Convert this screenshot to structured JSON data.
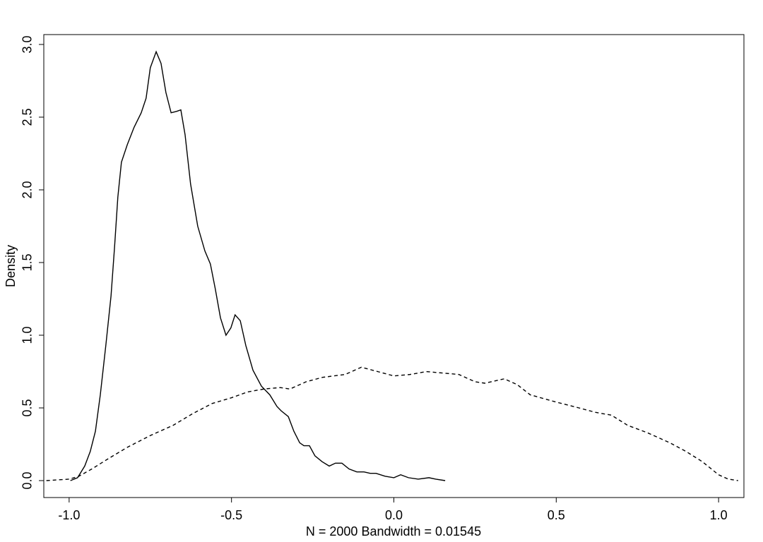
{
  "chart_data": {
    "type": "line",
    "x_label": "N = 2000   Bandwidth = 0.01545",
    "y_label": "Density",
    "xlim": [
      -1.078,
      1.078
    ],
    "ylim": [
      -0.1165,
      3.068
    ],
    "xticks": [
      {
        "value": -1,
        "label": "-1.0"
      },
      {
        "value": -0.5,
        "label": "-0.5"
      },
      {
        "value": 0,
        "label": "0.0"
      },
      {
        "value": 0.5,
        "label": "0.5"
      },
      {
        "value": 1,
        "label": "1.0"
      }
    ],
    "yticks": [
      {
        "value": 0,
        "label": "0.0"
      },
      {
        "value": 0.5,
        "label": "0.5"
      },
      {
        "value": 1,
        "label": "1.0"
      },
      {
        "value": 1.5,
        "label": "1.5"
      },
      {
        "value": 2,
        "label": "2.0"
      },
      {
        "value": 2.5,
        "label": "2.5"
      },
      {
        "value": 3,
        "label": "3.0"
      }
    ],
    "grid": false,
    "series": [
      {
        "color": "#000000",
        "dashed": false,
        "x": [
          -0.996,
          -0.974,
          -0.952,
          -0.935,
          -0.919,
          -0.904,
          -0.887,
          -0.871,
          -0.86,
          -0.85,
          -0.839,
          -0.821,
          -0.8,
          -0.778,
          -0.763,
          -0.75,
          -0.732,
          -0.717,
          -0.702,
          -0.686,
          -0.669,
          -0.656,
          -0.643,
          -0.626,
          -0.604,
          -0.582,
          -0.565,
          -0.55,
          -0.534,
          -0.517,
          -0.502,
          -0.489,
          -0.473,
          -0.456,
          -0.434,
          -0.408,
          -0.382,
          -0.36,
          -0.347,
          -0.325,
          -0.308,
          -0.29,
          -0.277,
          -0.26,
          -0.243,
          -0.221,
          -0.199,
          -0.18,
          -0.16,
          -0.138,
          -0.114,
          -0.092,
          -0.073,
          -0.055,
          -0.027,
          0.0,
          0.021,
          0.045,
          0.075,
          0.108,
          0.129,
          0.158
        ],
        "values": [
          0.0,
          0.02,
          0.1,
          0.2,
          0.34,
          0.59,
          0.93,
          1.27,
          1.61,
          1.95,
          2.19,
          2.31,
          2.43,
          2.53,
          2.63,
          2.84,
          2.95,
          2.87,
          2.67,
          2.53,
          2.54,
          2.55,
          2.38,
          2.04,
          1.75,
          1.58,
          1.49,
          1.32,
          1.12,
          1.0,
          1.05,
          1.14,
          1.1,
          0.93,
          0.76,
          0.65,
          0.59,
          0.51,
          0.48,
          0.44,
          0.34,
          0.26,
          0.24,
          0.24,
          0.17,
          0.13,
          0.1,
          0.12,
          0.12,
          0.08,
          0.06,
          0.06,
          0.05,
          0.05,
          0.03,
          0.02,
          0.04,
          0.02,
          0.01,
          0.02,
          0.01,
          0.0
        ]
      },
      {
        "color": "#000000",
        "dashed": true,
        "x": [
          -1.07,
          -1.0,
          -0.97,
          -0.93,
          -0.88,
          -0.82,
          -0.75,
          -0.68,
          -0.62,
          -0.56,
          -0.5,
          -0.45,
          -0.4,
          -0.35,
          -0.32,
          -0.27,
          -0.22,
          -0.15,
          -0.1,
          -0.05,
          0.0,
          0.05,
          0.1,
          0.15,
          0.2,
          0.25,
          0.28,
          0.34,
          0.38,
          0.42,
          0.5,
          0.57,
          0.62,
          0.67,
          0.72,
          0.78,
          0.85,
          0.9,
          0.95,
          1.0,
          1.03,
          1.06
        ],
        "values": [
          0.0,
          0.01,
          0.03,
          0.08,
          0.15,
          0.23,
          0.31,
          0.38,
          0.46,
          0.53,
          0.57,
          0.61,
          0.63,
          0.64,
          0.63,
          0.68,
          0.71,
          0.73,
          0.78,
          0.75,
          0.72,
          0.73,
          0.75,
          0.74,
          0.73,
          0.68,
          0.67,
          0.7,
          0.66,
          0.59,
          0.54,
          0.5,
          0.47,
          0.45,
          0.38,
          0.33,
          0.26,
          0.2,
          0.13,
          0.04,
          0.01,
          0.0
        ]
      }
    ]
  }
}
